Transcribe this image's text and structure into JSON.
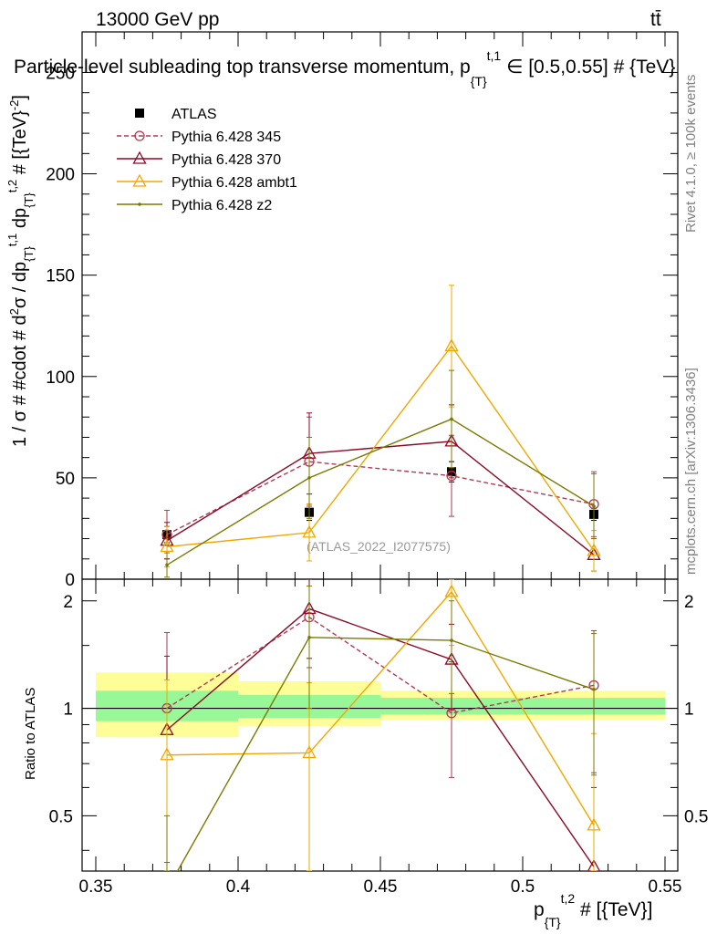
{
  "header": {
    "energy_label": "13000 GeV pp",
    "process_label": "tt̄"
  },
  "chart_data": [
    {
      "type": "line",
      "panel": "main",
      "title": "Particle-level subleading top transverse momentum, p{T}t,1 ∈ [0.5,0.55] # {TeV}",
      "title_parts": {
        "main": "Particle-level subleading top transverse momentum, p",
        "sub": "{T}",
        "sup": "t,1",
        "rest": " ∈ [0.5,0.55] # {TeV}"
      },
      "ylabel": "1 / σ # #cdot # d²σ / dp{T}t,1 dp{T}t,2 # [{TeV}⁻²]",
      "ylabel_parts": {
        "a": "1 / σ # #cdot # d",
        "b": "σ / dp",
        "c": "{T}",
        "d": "t,1",
        "e": " dp",
        "f": "{T}",
        "g": "t,2",
        "h": " # [{TeV}",
        "i": "-2",
        "j": "]",
        "sup2": "2"
      },
      "xlim": [
        0.35,
        0.55
      ],
      "ylim": [
        0,
        270
      ],
      "yticks": [
        0,
        50,
        100,
        150,
        200,
        250
      ],
      "ytick_labels": [
        "0",
        "50",
        "100",
        "150",
        "200",
        "250"
      ],
      "x": [
        0.375,
        0.425,
        0.475,
        0.525
      ],
      "series": [
        {
          "name": "ATLAS",
          "color": "#000000",
          "marker": "square",
          "dashed": false,
          "line": false,
          "values": [
            22,
            33,
            53,
            32
          ],
          "errors": [
            4,
            4,
            5,
            3
          ]
        },
        {
          "name": "Pythia 6.428 345",
          "color": "#b03a52",
          "marker": "circle",
          "dashed": true,
          "line": true,
          "values": [
            22,
            58,
            51,
            37
          ],
          "errors": [
            12,
            22,
            20,
            16
          ]
        },
        {
          "name": "Pythia 6.428 370",
          "color": "#8b0a23",
          "marker": "triangle",
          "dashed": false,
          "line": true,
          "values": [
            19,
            62,
            68,
            12
          ],
          "errors": [
            9,
            20,
            18,
            8
          ]
        },
        {
          "name": "Pythia 6.428 ambt1",
          "color": "#f0a800",
          "marker": "triangle",
          "dashed": false,
          "line": true,
          "values": [
            16,
            23,
            115,
            14
          ],
          "errors": [
            10,
            14,
            30,
            10
          ]
        },
        {
          "name": "Pythia 6.428 z2",
          "color": "#7a7a00",
          "marker": "dot",
          "dashed": false,
          "line": true,
          "values": [
            7,
            50,
            79,
            36
          ],
          "errors": [
            6,
            20,
            24,
            16
          ]
        }
      ],
      "watermark": "(ATLAS_2022_I2077575)"
    },
    {
      "type": "line",
      "panel": "ratio",
      "ylabel": "Ratio to ATLAS",
      "xlabel": "p{T}t,2 # [{TeV}]",
      "xlabel_parts": {
        "main": "p",
        "sub": "{T}",
        "sup": "t,2",
        "rest": " # [{TeV}]"
      },
      "xlim": [
        0.35,
        0.55
      ],
      "ylim": [
        0.35,
        2.3
      ],
      "yscale": "log",
      "yticks": [
        0.5,
        1,
        2
      ],
      "ytick_labels": [
        "0.5",
        "1",
        "2"
      ],
      "xticks": [
        0.35,
        0.4,
        0.45,
        0.5,
        0.55
      ],
      "xtick_labels": [
        "0.35",
        "0.4",
        "0.45",
        "0.5",
        "0.55"
      ],
      "x": [
        0.375,
        0.425,
        0.475,
        0.525
      ],
      "bands": [
        {
          "x0": 0.35,
          "x1": 0.4,
          "inner": [
            0.92,
            1.12
          ],
          "outer": [
            0.83,
            1.26
          ]
        },
        {
          "x0": 0.4,
          "x1": 0.45,
          "inner": [
            0.94,
            1.09
          ],
          "outer": [
            0.89,
            1.19
          ]
        },
        {
          "x0": 0.45,
          "x1": 0.55,
          "inner": [
            0.96,
            1.07
          ],
          "outer": [
            0.93,
            1.12
          ]
        }
      ],
      "band_colors": {
        "inner": "#98f898",
        "outer": "#fefe98"
      },
      "series": [
        {
          "name": "Pythia 6.428 345",
          "color": "#b03a52",
          "marker": "circle",
          "dashed": true,
          "values": [
            1.0,
            1.8,
            0.97,
            1.16
          ],
          "lo": [
            0.37,
            1.3,
            0.64,
            0.66
          ],
          "hi": [
            1.63,
            2.3,
            1.35,
            1.65
          ]
        },
        {
          "name": "Pythia 6.428 370",
          "color": "#8b0a23",
          "marker": "triangle",
          "dashed": false,
          "values": [
            0.87,
            1.9,
            1.37,
            0.36
          ],
          "lo": [
            0.35,
            1.38,
            0.99,
            0.35
          ],
          "hi": [
            1.4,
            2.3,
            1.72,
            0.6
          ]
        },
        {
          "name": "Pythia 6.428 ambt1",
          "color": "#f0a800",
          "marker": "triangle",
          "dashed": false,
          "values": [
            0.74,
            0.75,
            2.12,
            0.47
          ],
          "lo": [
            0.35,
            0.35,
            1.5,
            0.35
          ],
          "hi": [
            1.2,
            1.18,
            2.3,
            0.85
          ]
        },
        {
          "name": "Pythia 6.428 z2",
          "color": "#7a7a00",
          "marker": "dot",
          "dashed": false,
          "values": [
            0.31,
            1.58,
            1.55,
            1.13
          ],
          "lo": [
            0.2,
            1.0,
            1.1,
            0.65
          ],
          "hi": [
            0.5,
            2.2,
            2.0,
            1.62
          ]
        }
      ]
    }
  ],
  "side_texts": {
    "rivet": "Rivet 4.1.0, ≥ 100k events",
    "mcplots": "mcplots.cern.ch [arXiv:1306.3436]"
  }
}
